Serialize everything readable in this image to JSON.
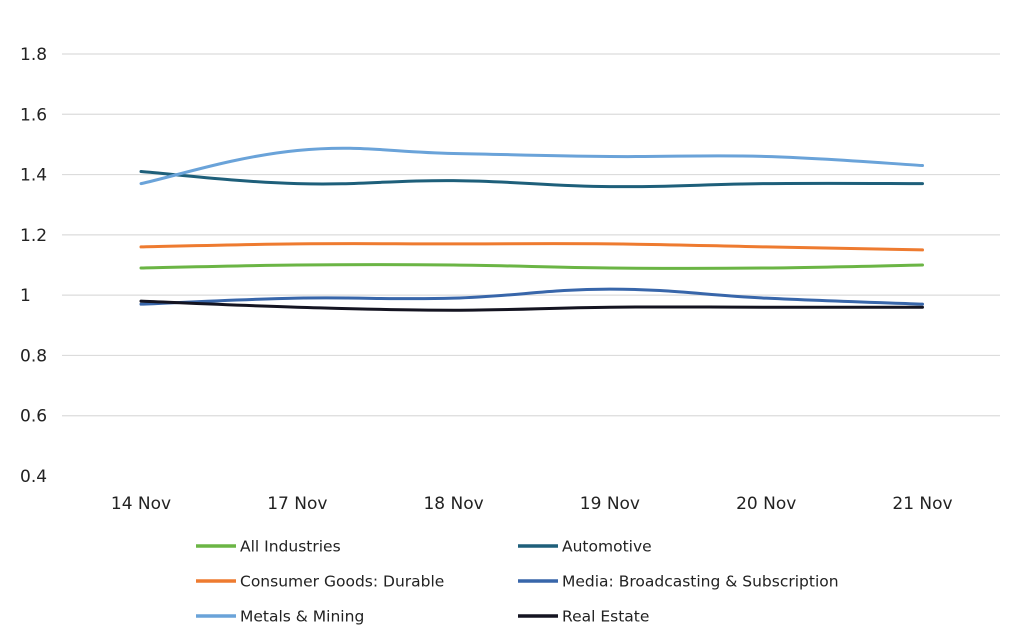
{
  "chart_data": {
    "type": "line",
    "categories": [
      "14 Nov",
      "17 Nov",
      "18 Nov",
      "19 Nov",
      "20 Nov",
      "21 Nov"
    ],
    "ylim": [
      0.4,
      1.8
    ],
    "yticks": [
      "1.8",
      "1.6",
      "1.4",
      "1.2",
      "1",
      "0.8",
      "0.6",
      "0.4"
    ],
    "grid": true,
    "legend_position": "bottom",
    "series": [
      {
        "name": "All Industries",
        "color": "#6BB545",
        "values": [
          1.09,
          1.1,
          1.1,
          1.09,
          1.09,
          1.1
        ]
      },
      {
        "name": "Automotive",
        "color": "#1E5F7A",
        "values": [
          1.41,
          1.37,
          1.38,
          1.36,
          1.37,
          1.37
        ]
      },
      {
        "name": "Consumer Goods: Durable",
        "color": "#EE7B30",
        "values": [
          1.16,
          1.17,
          1.17,
          1.17,
          1.16,
          1.15
        ]
      },
      {
        "name": "Media: Broadcasting & Subscription",
        "color": "#3866AA",
        "values": [
          0.97,
          0.99,
          0.99,
          1.02,
          0.99,
          0.97
        ]
      },
      {
        "name": "Metals & Mining",
        "color": "#6AA3D9",
        "values": [
          1.37,
          1.48,
          1.47,
          1.46,
          1.46,
          1.43
        ]
      },
      {
        "name": "Real Estate",
        "color": "#141421",
        "values": [
          0.98,
          0.96,
          0.95,
          0.96,
          0.96,
          0.96
        ]
      }
    ]
  }
}
